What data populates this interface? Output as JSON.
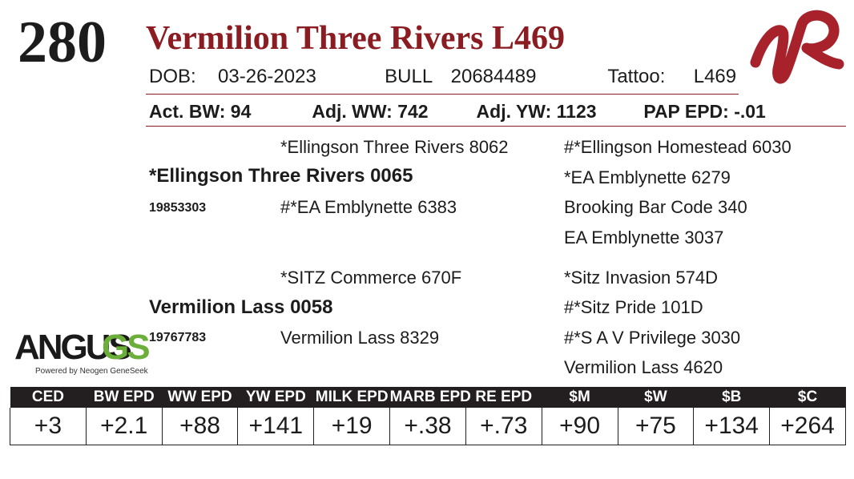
{
  "lot_number": "280",
  "animal": {
    "name": "Vermilion Three Rivers L469",
    "dob_label": "DOB:",
    "dob": "03-26-2023",
    "sex_label": "BULL",
    "registration": "20684489",
    "tattoo_label": "Tattoo:",
    "tattoo": "L469"
  },
  "performance": {
    "act_bw": "Act. BW: 94",
    "adj_ww": "Adj. WW: 742",
    "adj_yw": "Adj. YW: 1123",
    "pap_epd": "PAP EPD: -.01"
  },
  "pedigree": {
    "sire": {
      "name": "*Ellingson Three Rivers 0065",
      "reg": "19853303"
    },
    "sire_sire": "*Ellingson Three Rivers 8062",
    "sire_dam": "#*EA Emblynette 6383",
    "sire_sire_sire": "#*Ellingson Homestead 6030",
    "sire_sire_dam": "*EA Emblynette 6279",
    "sire_dam_sire": "Brooking Bar Code 340",
    "sire_dam_dam": "EA Emblynette 3037",
    "dam": {
      "name": "Vermilion Lass 0058",
      "reg": "19767783"
    },
    "dam_sire": "*SITZ Commerce 670F",
    "dam_dam": "Vermilion Lass 8329",
    "dam_sire_sire": "*Sitz Invasion 574D",
    "dam_sire_dam": "#*Sitz Pride 101D",
    "dam_dam_sire": "#*S A V Privilege 3030",
    "dam_dam_dam": "Vermilion Lass 4620"
  },
  "logos": {
    "breeder_mark": "VR",
    "angus_text": "ANGUS",
    "gs_text": "GS",
    "angus_sub": "Powered by Neogen GeneSeek"
  },
  "epd": {
    "headers": [
      "CED",
      "BW EPD",
      "WW EPD",
      "YW EPD",
      "MILK EPD",
      "MARB EPD",
      "RE EPD",
      "$M",
      "$W",
      "$B",
      "$C"
    ],
    "values": [
      "+3",
      "+2.1",
      "+88",
      "+141",
      "+19",
      "+.38",
      "+.73",
      "+90",
      "+75",
      "+134",
      "+264"
    ]
  },
  "colors": {
    "accent": "#8a1c22",
    "header_bg": "#231f20",
    "gs_green": "#6cae3a"
  }
}
